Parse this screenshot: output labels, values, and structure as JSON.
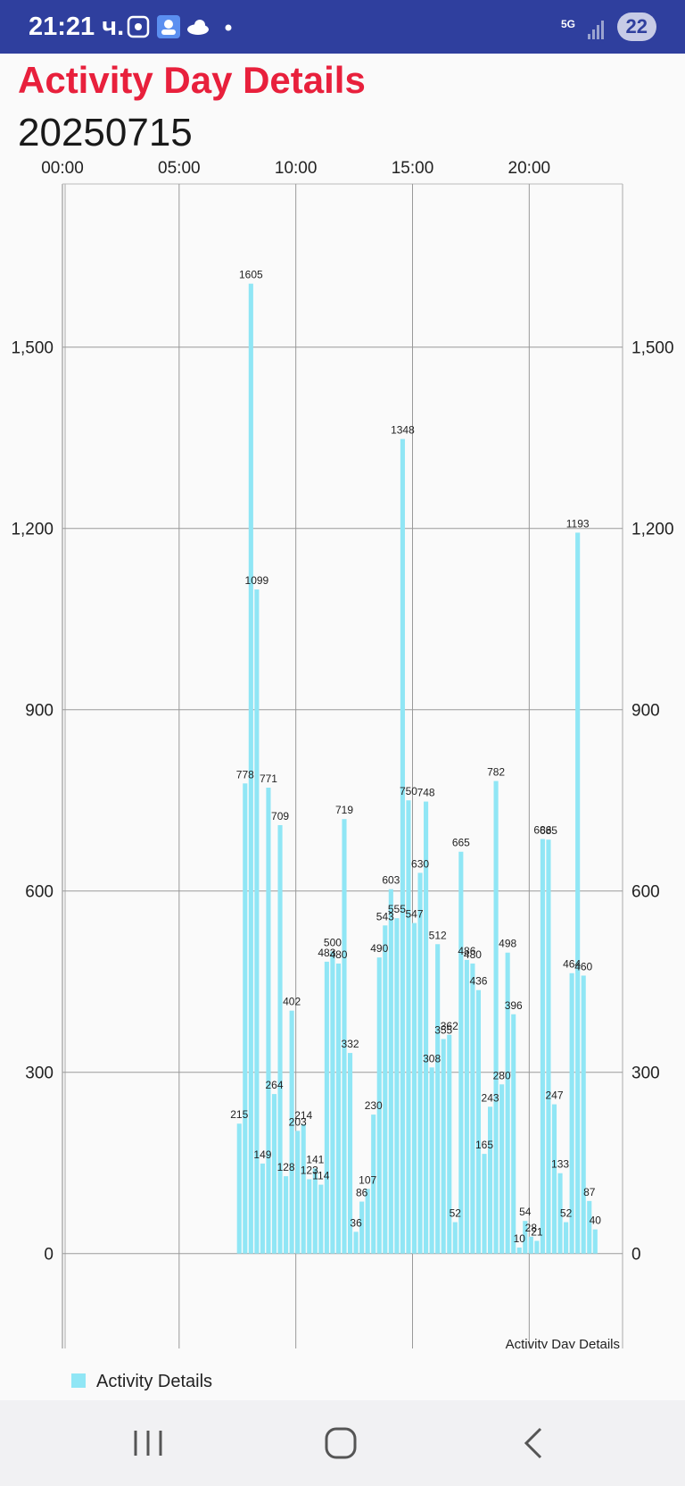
{
  "status_bar": {
    "time": "21:21 ч.",
    "network": "5G",
    "battery": "22",
    "icons": [
      "gallery-icon",
      "contact-icon",
      "cloud-icon",
      "dot-icon",
      "signal-icon",
      "battery-icon"
    ]
  },
  "header": {
    "title": "Activity Day Details",
    "date": "20250715"
  },
  "nav_bar": {
    "icons": [
      "recent-apps-icon",
      "home-icon",
      "back-icon"
    ]
  },
  "legend": {
    "label": "Activity Details",
    "color": "#90e6f5"
  },
  "colors": {
    "title": "#e8203c",
    "status_bar": "#2f3f9e",
    "bar": "#90e6f5"
  },
  "chart_data": {
    "type": "bar",
    "description": "Activity Day Details",
    "x_tick_labels": [
      "00:00",
      "05:00",
      "10:00",
      "15:00",
      "20:00"
    ],
    "x_tick_values": [
      0,
      5,
      10,
      15,
      20
    ],
    "xlim": [
      0,
      24
    ],
    "y_tick_labels": [
      "0",
      "300",
      "600",
      "900",
      "1,200",
      "1,500"
    ],
    "y_tick_values": [
      0,
      300,
      600,
      900,
      1200,
      1500
    ],
    "ylim": [
      -160,
      1770
    ],
    "grid": true,
    "legend_position": "bottom-left",
    "series": [
      {
        "name": "Activity Details",
        "x": [
          "07:30",
          "07:45",
          "08:00",
          "08:15",
          "08:30",
          "08:45",
          "09:00",
          "09:15",
          "09:30",
          "09:45",
          "10:00",
          "10:15",
          "10:30",
          "10:45",
          "11:00",
          "11:15",
          "11:30",
          "11:45",
          "12:00",
          "12:15",
          "12:30",
          "12:45",
          "13:00",
          "13:15",
          "13:30",
          "13:45",
          "14:00",
          "14:15",
          "14:30",
          "14:45",
          "15:00",
          "15:15",
          "15:30",
          "15:45",
          "16:00",
          "16:15",
          "16:30",
          "16:45",
          "17:00",
          "17:15",
          "17:30",
          "17:45",
          "18:00",
          "18:15",
          "18:30",
          "18:45",
          "19:00",
          "19:15",
          "19:30",
          "19:45",
          "20:00",
          "20:15",
          "20:30",
          "20:45",
          "21:00",
          "21:15",
          "21:30",
          "21:45",
          "22:00",
          "22:15",
          "22:30",
          "22:45"
        ],
        "values": [
          215,
          778,
          1605,
          1099,
          149,
          771,
          264,
          709,
          128,
          402,
          203,
          214,
          123,
          141,
          114,
          483,
          500,
          480,
          719,
          332,
          36,
          86,
          107,
          230,
          490,
          543,
          603,
          555,
          1348,
          750,
          547,
          630,
          748,
          308,
          512,
          355,
          362,
          52,
          665,
          486,
          480,
          436,
          165,
          243,
          782,
          280,
          498,
          396,
          10,
          54,
          28,
          21,
          686,
          685,
          247,
          133,
          52,
          464,
          1193,
          460,
          87,
          40
        ]
      }
    ]
  }
}
